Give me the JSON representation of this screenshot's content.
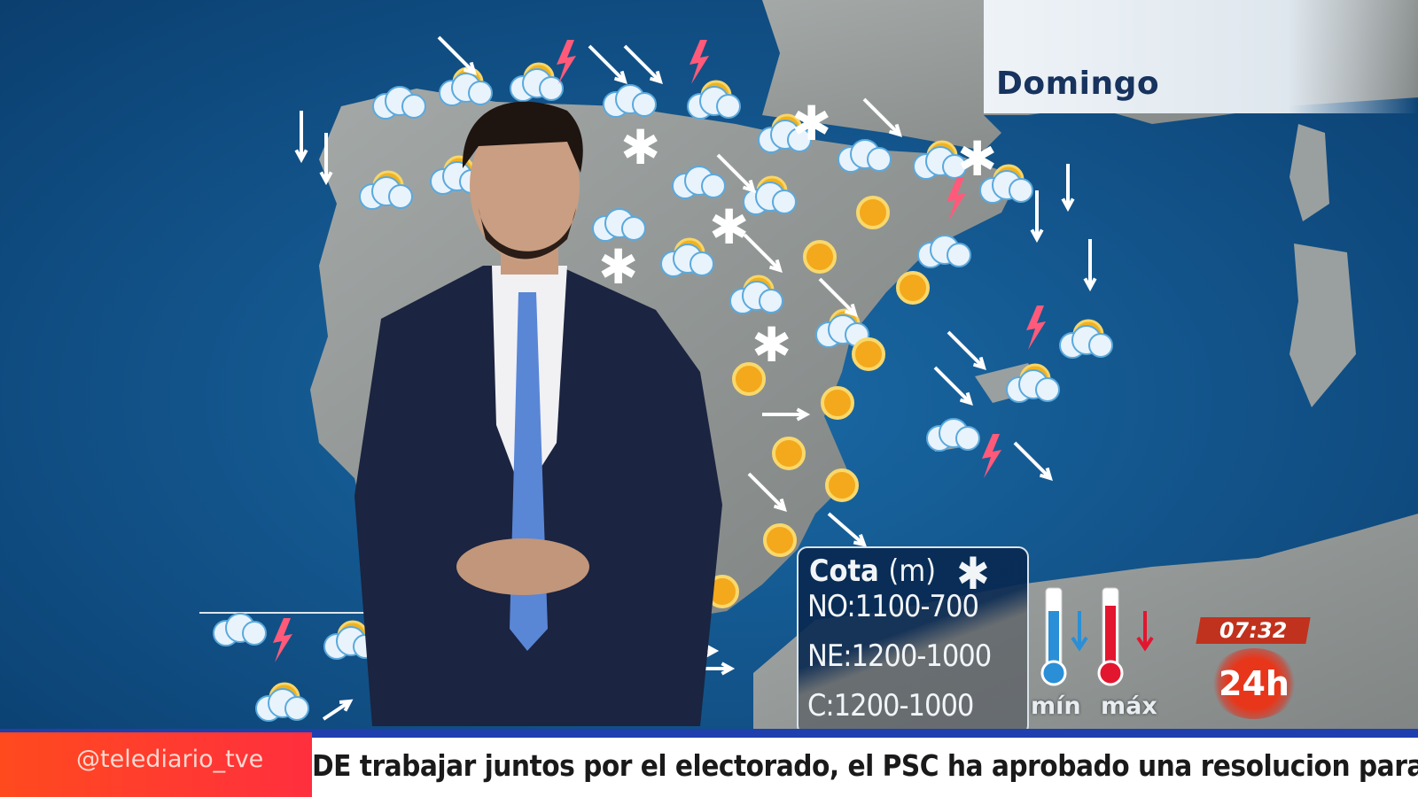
{
  "broadcast": {
    "day": "Domingo",
    "snow_level": {
      "title": "Cota",
      "unit": "(m)",
      "icon": "snowflake-icon",
      "rows": [
        "NO:1100-700",
        "NE:1200-1000",
        "C:1200-1000"
      ]
    },
    "temperature_legend": {
      "min_label": "mín",
      "max_label": "máx",
      "min_color": "#2a8fd6",
      "max_color": "#e3162f"
    },
    "clock": "07:32",
    "channel_logo": "24h",
    "ticker": {
      "handle": "@telediario_tve",
      "text": "DE trabajar juntos por el electorado, el PSC ha aprobado una resolucion para"
    },
    "colors": {
      "sea": "#0d4f86",
      "land": "#8a8f8e",
      "ticker_red": "#ff3a2e",
      "ticker_blue": "#1f3fae"
    }
  }
}
